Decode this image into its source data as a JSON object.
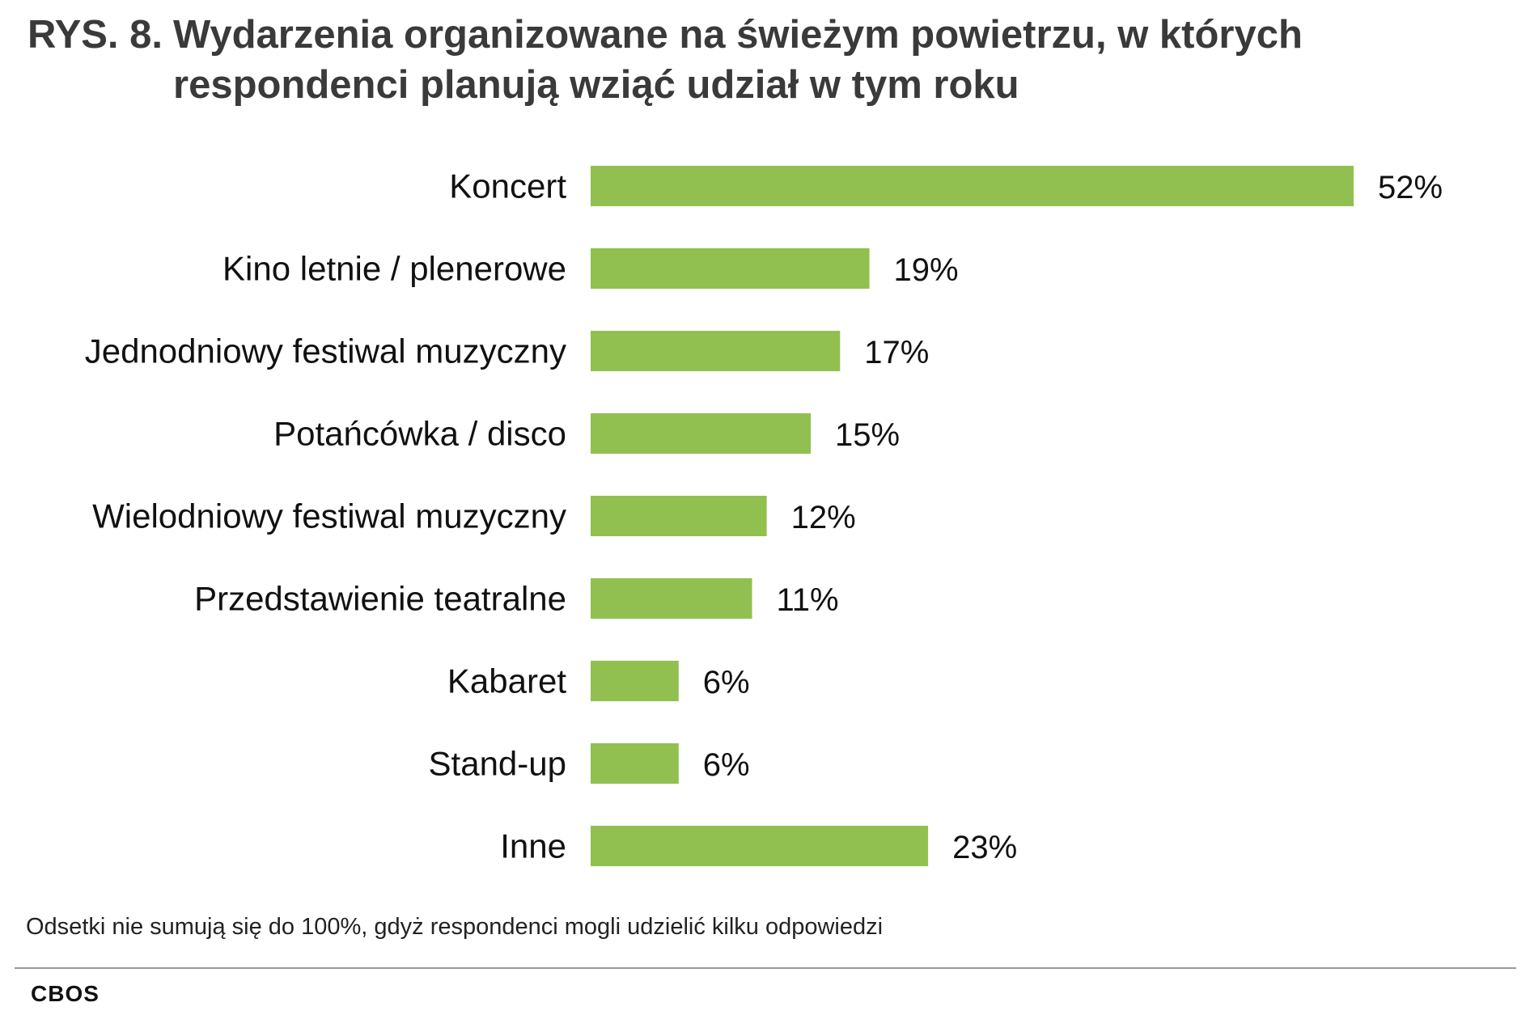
{
  "title": {
    "prefix": "RYS. 8.",
    "text": "Wydarzenia organizowane na świeżym powietrzu, w których respondenci planują wziąć udział w tym roku"
  },
  "footnote": "Odsetki nie sumują się do 100%, gdyż respondenci mogli udzielić kilku odpowiedzi",
  "source": "CBOS",
  "colors": {
    "bar": "#92c050",
    "text": "#111111"
  },
  "chart_data": {
    "type": "bar",
    "orientation": "horizontal",
    "categories": [
      "Koncert",
      "Kino letnie / plenerowe",
      "Jednodniowy festiwal muzyczny",
      "Potańcówka / disco",
      "Wielodniowy festiwal muzyczny",
      "Przedstawienie teatralne",
      "Kabaret",
      "Stand-up",
      "Inne"
    ],
    "values": [
      52,
      19,
      17,
      15,
      12,
      11,
      6,
      6,
      23
    ],
    "data_labels": [
      "52%",
      "19%",
      "17%",
      "15%",
      "12%",
      "11%",
      "6%",
      "6%",
      "23%"
    ],
    "unit": "%",
    "xlim": [
      0,
      52
    ],
    "grid": false,
    "legend": "none"
  }
}
